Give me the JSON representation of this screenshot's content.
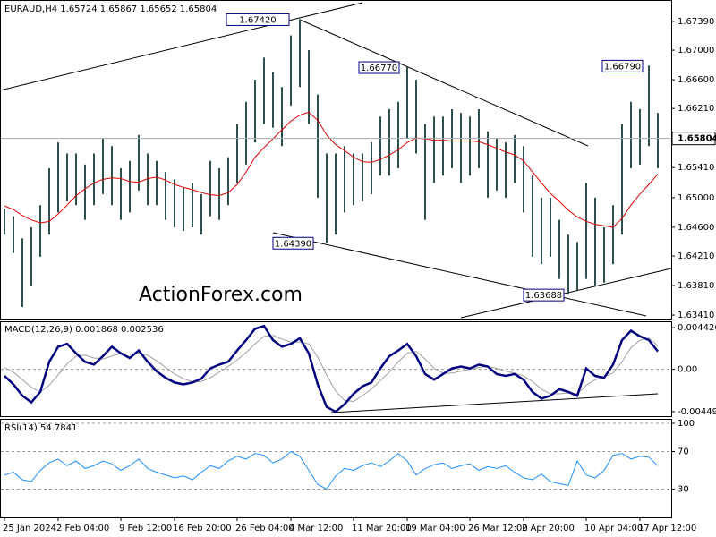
{
  "chart_data": [
    {
      "type": "ohlc",
      "title": "EURAUD,H4  1.65724 1.65867 1.65652 1.65804",
      "watermark": "ActionForex.com",
      "categories": [
        "25 Jan 2024",
        null,
        null,
        null,
        null,
        null,
        "2 Feb 04:00",
        null,
        null,
        null,
        null,
        null,
        null,
        "9 Feb 12:00",
        null,
        null,
        null,
        null,
        null,
        "16 Feb 20:00",
        null,
        null,
        null,
        null,
        null,
        null,
        "26 Feb 04:00",
        null,
        null,
        null,
        null,
        null,
        "4 Mar 12:00",
        null,
        null,
        null,
        null,
        null,
        null,
        "11 Mar 20:00",
        null,
        null,
        null,
        null,
        null,
        "19 Mar 04:00",
        null,
        null,
        null,
        null,
        null,
        null,
        "26 Mar 12:00",
        null,
        null,
        null,
        null,
        null,
        "2 Apr 20:00",
        null,
        null,
        null,
        null,
        null,
        null,
        "10 Apr 04:00",
        null,
        null,
        null,
        null,
        null,
        "17 Apr 12:00",
        null,
        null
      ],
      "high": [
        1.6485,
        1.6475,
        1.6445,
        1.646,
        1.649,
        1.654,
        1.6575,
        1.656,
        1.656,
        1.6545,
        1.656,
        1.658,
        1.657,
        1.654,
        1.655,
        1.6585,
        1.656,
        1.655,
        1.6535,
        1.6525,
        1.6515,
        1.652,
        1.6505,
        1.655,
        1.654,
        1.6555,
        1.66,
        1.663,
        1.666,
        1.669,
        1.667,
        1.665,
        1.672,
        1.6742,
        1.67,
        1.664,
        1.656,
        1.656,
        1.657,
        1.656,
        1.656,
        1.6575,
        1.661,
        1.662,
        1.663,
        1.6677,
        1.666,
        1.66,
        1.661,
        1.661,
        1.662,
        1.6615,
        1.661,
        1.662,
        1.659,
        1.658,
        1.6575,
        1.6585,
        1.657,
        1.653,
        1.65,
        1.65,
        1.647,
        1.645,
        1.644,
        1.652,
        1.65,
        1.646,
        1.649,
        1.66,
        1.663,
        1.662,
        1.6679,
        1.6615
      ],
      "low": [
        1.645,
        1.6425,
        1.6352,
        1.638,
        1.642,
        1.645,
        1.648,
        1.6495,
        1.649,
        1.647,
        1.649,
        1.6505,
        1.649,
        1.647,
        1.648,
        1.651,
        1.649,
        1.649,
        1.647,
        1.646,
        1.6455,
        1.646,
        1.645,
        1.6475,
        1.647,
        1.649,
        1.652,
        1.6545,
        1.6575,
        1.66,
        1.6595,
        1.657,
        1.6625,
        1.665,
        1.66,
        1.65,
        1.6439,
        1.645,
        1.648,
        1.649,
        1.6495,
        1.6505,
        1.653,
        1.653,
        1.654,
        1.658,
        1.656,
        1.647,
        1.652,
        1.653,
        1.654,
        1.652,
        1.653,
        1.654,
        1.65,
        1.651,
        1.65,
        1.652,
        1.648,
        1.642,
        1.641,
        1.642,
        1.639,
        1.6369,
        1.6375,
        1.639,
        1.638,
        1.6385,
        1.641,
        1.645,
        1.654,
        1.6545,
        1.657,
        1.654
      ],
      "color": "#2f4f4f",
      "ma": {
        "color": "#e00000",
        "values": [
          1.6489,
          1.6484,
          1.6476,
          1.647,
          1.6466,
          1.6468,
          1.6478,
          1.649,
          1.6503,
          1.6512,
          1.652,
          1.6525,
          1.6527,
          1.6526,
          1.6522,
          1.6521,
          1.6526,
          1.6528,
          1.6524,
          1.6518,
          1.6514,
          1.6511,
          1.6507,
          1.6504,
          1.6503,
          1.6507,
          1.6518,
          1.6535,
          1.6555,
          1.6568,
          1.658,
          1.6592,
          1.6604,
          1.6612,
          1.6616,
          1.6605,
          1.6585,
          1.6572,
          1.6564,
          1.6555,
          1.6549,
          1.6548,
          1.6552,
          1.6558,
          1.6565,
          1.6575,
          1.6581,
          1.658,
          1.6578,
          1.6578,
          1.6577,
          1.6577,
          1.6577,
          1.6576,
          1.6572,
          1.6567,
          1.6562,
          1.6558,
          1.655,
          1.6535,
          1.652,
          1.6506,
          1.6495,
          1.6483,
          1.6474,
          1.6468,
          1.6464,
          1.6462,
          1.646,
          1.6472,
          1.649,
          1.6505,
          1.6518,
          1.6532
        ]
      },
      "ylim": [
        1.6335,
        1.6768
      ],
      "yticks": [
        {
          "value": 1.6739,
          "label": "1.67390"
        },
        {
          "value": 1.67,
          "label": "1.67000"
        },
        {
          "value": 1.666,
          "label": "1.66600"
        },
        {
          "value": 1.6621,
          "label": "1.66210"
        },
        {
          "value": 1.6541,
          "label": "1.65410"
        },
        {
          "value": 1.65,
          "label": "1.65000"
        },
        {
          "value": 1.646,
          "label": "1.64600"
        },
        {
          "value": 1.6421,
          "label": "1.64210"
        },
        {
          "value": 1.6381,
          "label": "1.63810"
        },
        {
          "value": 1.6341,
          "label": "1.63410"
        }
      ],
      "last_price": {
        "value": 1.65804,
        "label": "1.65804"
      },
      "annotations": [
        {
          "value": 1.6742,
          "label": "1.67420"
        },
        {
          "value": 1.6677,
          "label": "1.66770"
        },
        {
          "value": 1.6439,
          "label": "1.64390"
        },
        {
          "value": 1.63688,
          "label": "1.63688"
        },
        {
          "value": 1.6679,
          "label": "1.66790"
        }
      ]
    },
    {
      "type": "macd",
      "title": "MACD(12,26,9) 0.001868 0.002536",
      "series": [
        {
          "color": "#000080",
          "values": [
            -0.0007,
            -0.0016,
            -0.0028,
            -0.0035,
            -0.0024,
            0.0008,
            0.0024,
            0.0027,
            0.0017,
            0.0008,
            0.0005,
            0.0014,
            0.0024,
            0.0017,
            0.0012,
            0.002,
            0.0008,
            -0.0002,
            -0.0009,
            -0.0014,
            -0.0016,
            -0.0014,
            -0.001,
            0.0001,
            0.0005,
            0.0008,
            0.002,
            0.0031,
            0.0043,
            0.0046,
            0.0031,
            0.0024,
            0.0027,
            0.0033,
            0.0017,
            -0.0016,
            -0.004,
            -0.0045,
            -0.0037,
            -0.0026,
            -0.0018,
            -0.0014,
            0.0001,
            0.0014,
            0.002,
            0.0027,
            0.0014,
            -0.0005,
            -0.0011,
            -0.0005,
            0.0001,
            0.0003,
            0.0001,
            0.0005,
            0.0003,
            -0.0005,
            -0.0007,
            -0.0005,
            -0.0011,
            -0.0024,
            -0.0031,
            -0.0028,
            -0.0021,
            -0.0024,
            -0.0028,
            0.0001,
            -0.0007,
            -0.0009,
            0.0005,
            0.0031,
            0.0041,
            0.0035,
            0.0031,
            0.0019
          ]
        },
        {
          "color": "#a0a0a0",
          "values": [
            0.0002,
            -0.0003,
            -0.0011,
            -0.0019,
            -0.0024,
            -0.0017,
            -0.0006,
            0.0006,
            0.0014,
            0.0015,
            0.0012,
            0.0011,
            0.0014,
            0.0017,
            0.0016,
            0.0017,
            0.0015,
            0.0009,
            0.0002,
            -0.0005,
            -0.001,
            -0.0013,
            -0.0013,
            -0.0009,
            -0.0003,
            0.0003,
            0.001,
            0.0018,
            0.0027,
            0.0035,
            0.0036,
            0.0032,
            0.0029,
            0.0029,
            0.0027,
            0.0013,
            -0.0006,
            -0.0023,
            -0.0033,
            -0.0034,
            -0.0028,
            -0.0021,
            -0.0012,
            -0.0003,
            0.0008,
            0.0017,
            0.0019,
            0.0011,
            0.0001,
            -0.0004,
            -0.0004,
            -0.0002,
            0.0,
            0.0002,
            0.0003,
            0.0001,
            -0.0002,
            -0.0004,
            -0.0007,
            -0.0013,
            -0.0021,
            -0.0026,
            -0.0026,
            -0.0025,
            -0.0026,
            -0.0017,
            -0.0011,
            -0.0008,
            -0.0004,
            0.0008,
            0.0023,
            0.0031,
            0.0033,
            0.0025
          ]
        }
      ],
      "ylim": [
        -0.00497,
        0.005
      ],
      "yticks": [
        0.004426,
        {
          "value": 0,
          "label": "0.00"
        },
        -0.004493
      ]
    },
    {
      "type": "rsi",
      "title": "RSI(14) 54.7841",
      "color": "#1e90ff",
      "values": [
        45,
        48,
        40,
        38,
        50,
        58,
        62,
        55,
        60,
        52,
        55,
        60,
        57,
        50,
        55,
        62,
        52,
        48,
        45,
        42,
        44,
        40,
        48,
        55,
        52,
        60,
        65,
        62,
        68,
        66,
        58,
        62,
        70,
        65,
        50,
        35,
        30,
        44,
        52,
        50,
        55,
        58,
        54,
        60,
        68,
        60,
        45,
        52,
        56,
        58,
        52,
        55,
        57,
        50,
        54,
        52,
        55,
        48,
        42,
        40,
        46,
        38,
        36,
        34,
        60,
        45,
        42,
        50,
        66,
        68,
        62,
        65,
        64,
        55
      ],
      "ylim": [
        0,
        100
      ],
      "yticks": [
        100,
        70,
        30
      ]
    }
  ]
}
